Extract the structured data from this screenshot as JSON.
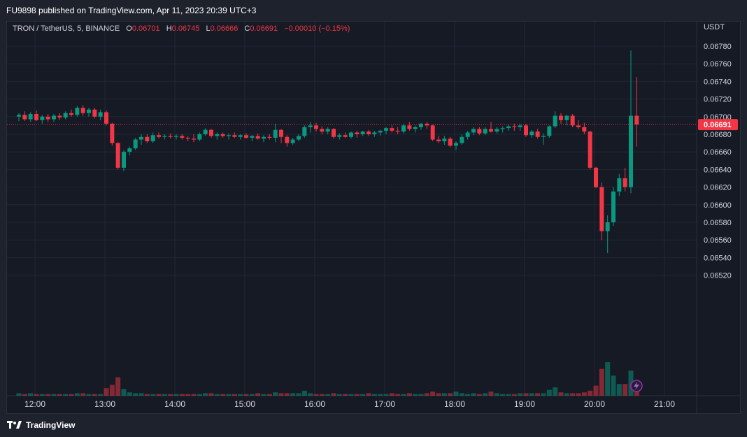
{
  "header": {
    "published": "FU9898 published on TradingView.com, Apr 11, 2023 20:39 UTC+3"
  },
  "legend": {
    "symbol": "TRON / TetherUS, 5, BINANCE",
    "o_label": "O",
    "open": "0.06701",
    "h_label": "H",
    "high": "0.06745",
    "l_label": "L",
    "low": "0.06666",
    "c_label": "C",
    "close": "0.06691",
    "change": "−0.00010 (−0.15%)"
  },
  "footer": {
    "brand": "TradingView",
    "logo_icon": "tradingview-logo-icon"
  },
  "colors": {
    "up": "#089981",
    "down": "#f23645",
    "background": "#161a25",
    "grid": "#232733",
    "price_line": "#f23645"
  },
  "chart_data": {
    "type": "candlestick",
    "title": "TRON / TetherUS, 5, BINANCE",
    "currency_label": "USDT",
    "current_price_label": "0.06691",
    "ylim": [
      0.0651,
      0.0679
    ],
    "y_ticks": [
      "0.06780",
      "0.06760",
      "0.06740",
      "0.06720",
      "0.06700",
      "0.06680",
      "0.06660",
      "0.06640",
      "0.06620",
      "0.06600",
      "0.06580",
      "0.06560",
      "0.06540",
      "0.06520"
    ],
    "x_ticks": [
      {
        "label": "12:00",
        "min": 720
      },
      {
        "label": "13:00",
        "min": 780
      },
      {
        "label": "14:00",
        "min": 840
      },
      {
        "label": "15:00",
        "min": 900
      },
      {
        "label": "16:00",
        "min": 960
      },
      {
        "label": "17:00",
        "min": 1020
      },
      {
        "label": "18:00",
        "min": 1080
      },
      {
        "label": "19:00",
        "min": 1140
      },
      {
        "label": "20:00",
        "min": 1200
      },
      {
        "label": "21:00",
        "min": 1260
      }
    ],
    "interval_minutes": 5,
    "start_time": "11:45",
    "candles": [
      [
        0.067,
        0.06704,
        0.06695,
        0.06702,
        3
      ],
      [
        0.06702,
        0.06706,
        0.06695,
        0.06697,
        2
      ],
      [
        0.06697,
        0.06705,
        0.06694,
        0.06703,
        3
      ],
      [
        0.06703,
        0.06707,
        0.06695,
        0.06696,
        2
      ],
      [
        0.06696,
        0.06702,
        0.06692,
        0.067,
        2
      ],
      [
        0.067,
        0.06703,
        0.06694,
        0.06697,
        2
      ],
      [
        0.06697,
        0.06703,
        0.06694,
        0.06701,
        2
      ],
      [
        0.06701,
        0.06704,
        0.06696,
        0.06699,
        2
      ],
      [
        0.06699,
        0.06706,
        0.06697,
        0.06704,
        2
      ],
      [
        0.06704,
        0.06708,
        0.067,
        0.06702,
        2
      ],
      [
        0.06702,
        0.06712,
        0.067,
        0.0671,
        3
      ],
      [
        0.0671,
        0.06713,
        0.06701,
        0.06704,
        3
      ],
      [
        0.06704,
        0.0671,
        0.067,
        0.06708,
        2
      ],
      [
        0.06708,
        0.0671,
        0.06698,
        0.067,
        2
      ],
      [
        0.067,
        0.06708,
        0.06696,
        0.06705,
        2
      ],
      [
        0.06705,
        0.06707,
        0.0669,
        0.06692,
        9
      ],
      [
        0.06692,
        0.06693,
        0.06667,
        0.0667,
        13
      ],
      [
        0.0667,
        0.06671,
        0.0664,
        0.06642,
        22
      ],
      [
        0.06642,
        0.06662,
        0.06638,
        0.0666,
        8
      ],
      [
        0.0666,
        0.06666,
        0.06656,
        0.06664,
        4
      ],
      [
        0.06664,
        0.06676,
        0.06662,
        0.06674,
        3
      ],
      [
        0.06674,
        0.0668,
        0.06668,
        0.06677,
        3
      ],
      [
        0.06677,
        0.0668,
        0.0667,
        0.06672,
        2
      ],
      [
        0.06672,
        0.06682,
        0.0667,
        0.06679,
        2
      ],
      [
        0.06679,
        0.06682,
        0.06675,
        0.06677,
        2
      ],
      [
        0.06677,
        0.0668,
        0.06674,
        0.06678,
        2
      ],
      [
        0.06678,
        0.06681,
        0.06675,
        0.06677,
        2
      ],
      [
        0.06677,
        0.0668,
        0.06674,
        0.06678,
        2
      ],
      [
        0.06678,
        0.0668,
        0.06674,
        0.06676,
        2
      ],
      [
        0.06676,
        0.06678,
        0.06672,
        0.06675,
        2
      ],
      [
        0.06675,
        0.0668,
        0.06671,
        0.06674,
        2
      ],
      [
        0.06674,
        0.06682,
        0.06672,
        0.0668,
        2
      ],
      [
        0.0668,
        0.06687,
        0.06678,
        0.06685,
        3
      ],
      [
        0.06685,
        0.06686,
        0.06676,
        0.06678,
        3
      ],
      [
        0.06678,
        0.06682,
        0.06674,
        0.0668,
        2
      ],
      [
        0.0668,
        0.06682,
        0.06676,
        0.06678,
        2
      ],
      [
        0.06678,
        0.06681,
        0.06674,
        0.06679,
        2
      ],
      [
        0.06679,
        0.06682,
        0.06676,
        0.06677,
        2
      ],
      [
        0.06677,
        0.0668,
        0.06674,
        0.06679,
        2
      ],
      [
        0.06679,
        0.06681,
        0.06675,
        0.06676,
        2
      ],
      [
        0.06676,
        0.06679,
        0.06672,
        0.06678,
        2
      ],
      [
        0.06678,
        0.06681,
        0.06674,
        0.06675,
        3
      ],
      [
        0.06675,
        0.06679,
        0.06671,
        0.06677,
        2
      ],
      [
        0.06677,
        0.0668,
        0.06674,
        0.06676,
        2
      ],
      [
        0.06676,
        0.06692,
        0.06671,
        0.06685,
        4
      ],
      [
        0.06685,
        0.06686,
        0.0667,
        0.06677,
        3
      ],
      [
        0.06677,
        0.06679,
        0.06666,
        0.0667,
        3
      ],
      [
        0.0667,
        0.06676,
        0.06668,
        0.06674,
        3
      ],
      [
        0.06674,
        0.0668,
        0.06672,
        0.06678,
        3
      ],
      [
        0.06678,
        0.0669,
        0.06676,
        0.06688,
        6
      ],
      [
        0.06688,
        0.06694,
        0.06682,
        0.0669,
        3
      ],
      [
        0.0669,
        0.06693,
        0.06683,
        0.06686,
        2
      ],
      [
        0.06686,
        0.06689,
        0.0668,
        0.06683,
        2
      ],
      [
        0.06683,
        0.06688,
        0.0668,
        0.06686,
        2
      ],
      [
        0.06686,
        0.06687,
        0.06675,
        0.06677,
        3
      ],
      [
        0.06677,
        0.06681,
        0.06674,
        0.06679,
        2
      ],
      [
        0.06679,
        0.06682,
        0.06676,
        0.06677,
        2
      ],
      [
        0.06677,
        0.06683,
        0.06675,
        0.06682,
        2
      ],
      [
        0.06682,
        0.06684,
        0.06676,
        0.0668,
        2
      ],
      [
        0.0668,
        0.06684,
        0.06678,
        0.06683,
        2
      ],
      [
        0.06683,
        0.06685,
        0.06678,
        0.0668,
        3
      ],
      [
        0.0668,
        0.06684,
        0.06677,
        0.06682,
        2
      ],
      [
        0.06682,
        0.06685,
        0.06678,
        0.06684,
        2
      ],
      [
        0.06684,
        0.06688,
        0.0668,
        0.06687,
        2
      ],
      [
        0.06687,
        0.0669,
        0.06682,
        0.06684,
        3
      ],
      [
        0.06684,
        0.06688,
        0.0668,
        0.06683,
        2
      ],
      [
        0.06683,
        0.06692,
        0.06681,
        0.0669,
        2
      ],
      [
        0.0669,
        0.06694,
        0.06684,
        0.06686,
        3
      ],
      [
        0.06686,
        0.0669,
        0.06682,
        0.06688,
        2
      ],
      [
        0.06688,
        0.06693,
        0.06685,
        0.06692,
        2
      ],
      [
        0.06692,
        0.06694,
        0.06686,
        0.0669,
        3
      ],
      [
        0.0669,
        0.06691,
        0.06672,
        0.06674,
        5
      ],
      [
        0.06674,
        0.06678,
        0.0667,
        0.06672,
        3
      ],
      [
        0.06672,
        0.06678,
        0.06668,
        0.06675,
        3
      ],
      [
        0.06675,
        0.06677,
        0.06665,
        0.06667,
        3
      ],
      [
        0.06667,
        0.06672,
        0.06662,
        0.0667,
        5
      ],
      [
        0.0667,
        0.0668,
        0.06668,
        0.06677,
        3
      ],
      [
        0.06677,
        0.06684,
        0.06674,
        0.06682,
        2
      ],
      [
        0.06682,
        0.06688,
        0.06679,
        0.06686,
        3
      ],
      [
        0.06686,
        0.06688,
        0.06679,
        0.06681,
        2
      ],
      [
        0.06681,
        0.06688,
        0.06679,
        0.06686,
        3
      ],
      [
        0.06686,
        0.06694,
        0.06682,
        0.06683,
        5
      ],
      [
        0.06683,
        0.06688,
        0.06681,
        0.06686,
        3
      ],
      [
        0.06686,
        0.06689,
        0.06682,
        0.06687,
        2
      ],
      [
        0.06687,
        0.06691,
        0.06684,
        0.06689,
        2
      ],
      [
        0.06689,
        0.06692,
        0.06684,
        0.06688,
        2
      ],
      [
        0.06688,
        0.06692,
        0.06684,
        0.0669,
        3
      ],
      [
        0.0669,
        0.06692,
        0.06677,
        0.06679,
        3
      ],
      [
        0.06679,
        0.06685,
        0.06676,
        0.06683,
        3
      ],
      [
        0.06683,
        0.06686,
        0.06675,
        0.06677,
        3
      ],
      [
        0.06677,
        0.06681,
        0.06668,
        0.06678,
        3
      ],
      [
        0.06678,
        0.0669,
        0.06676,
        0.06689,
        7
      ],
      [
        0.06689,
        0.06706,
        0.06687,
        0.06701,
        10
      ],
      [
        0.06701,
        0.06704,
        0.06692,
        0.06696,
        4
      ],
      [
        0.06696,
        0.06702,
        0.0669,
        0.06701,
        3
      ],
      [
        0.06701,
        0.06703,
        0.06688,
        0.0669,
        3
      ],
      [
        0.0669,
        0.06696,
        0.06686,
        0.06688,
        3
      ],
      [
        0.06688,
        0.06693,
        0.0668,
        0.06683,
        4
      ],
      [
        0.06683,
        0.06684,
        0.0664,
        0.06642,
        6
      ],
      [
        0.06642,
        0.06643,
        0.06619,
        0.0662,
        12
      ],
      [
        0.0662,
        0.06625,
        0.0656,
        0.0657,
        32
      ],
      [
        0.0657,
        0.06588,
        0.06545,
        0.0658,
        40
      ],
      [
        0.0658,
        0.0662,
        0.06576,
        0.06615,
        24
      ],
      [
        0.06615,
        0.06635,
        0.0661,
        0.0663,
        14
      ],
      [
        0.0663,
        0.06642,
        0.06615,
        0.0662,
        14
      ],
      [
        0.0662,
        0.06775,
        0.06613,
        0.06701,
        30
      ],
      [
        0.06701,
        0.06745,
        0.06666,
        0.06691,
        18
      ]
    ]
  }
}
